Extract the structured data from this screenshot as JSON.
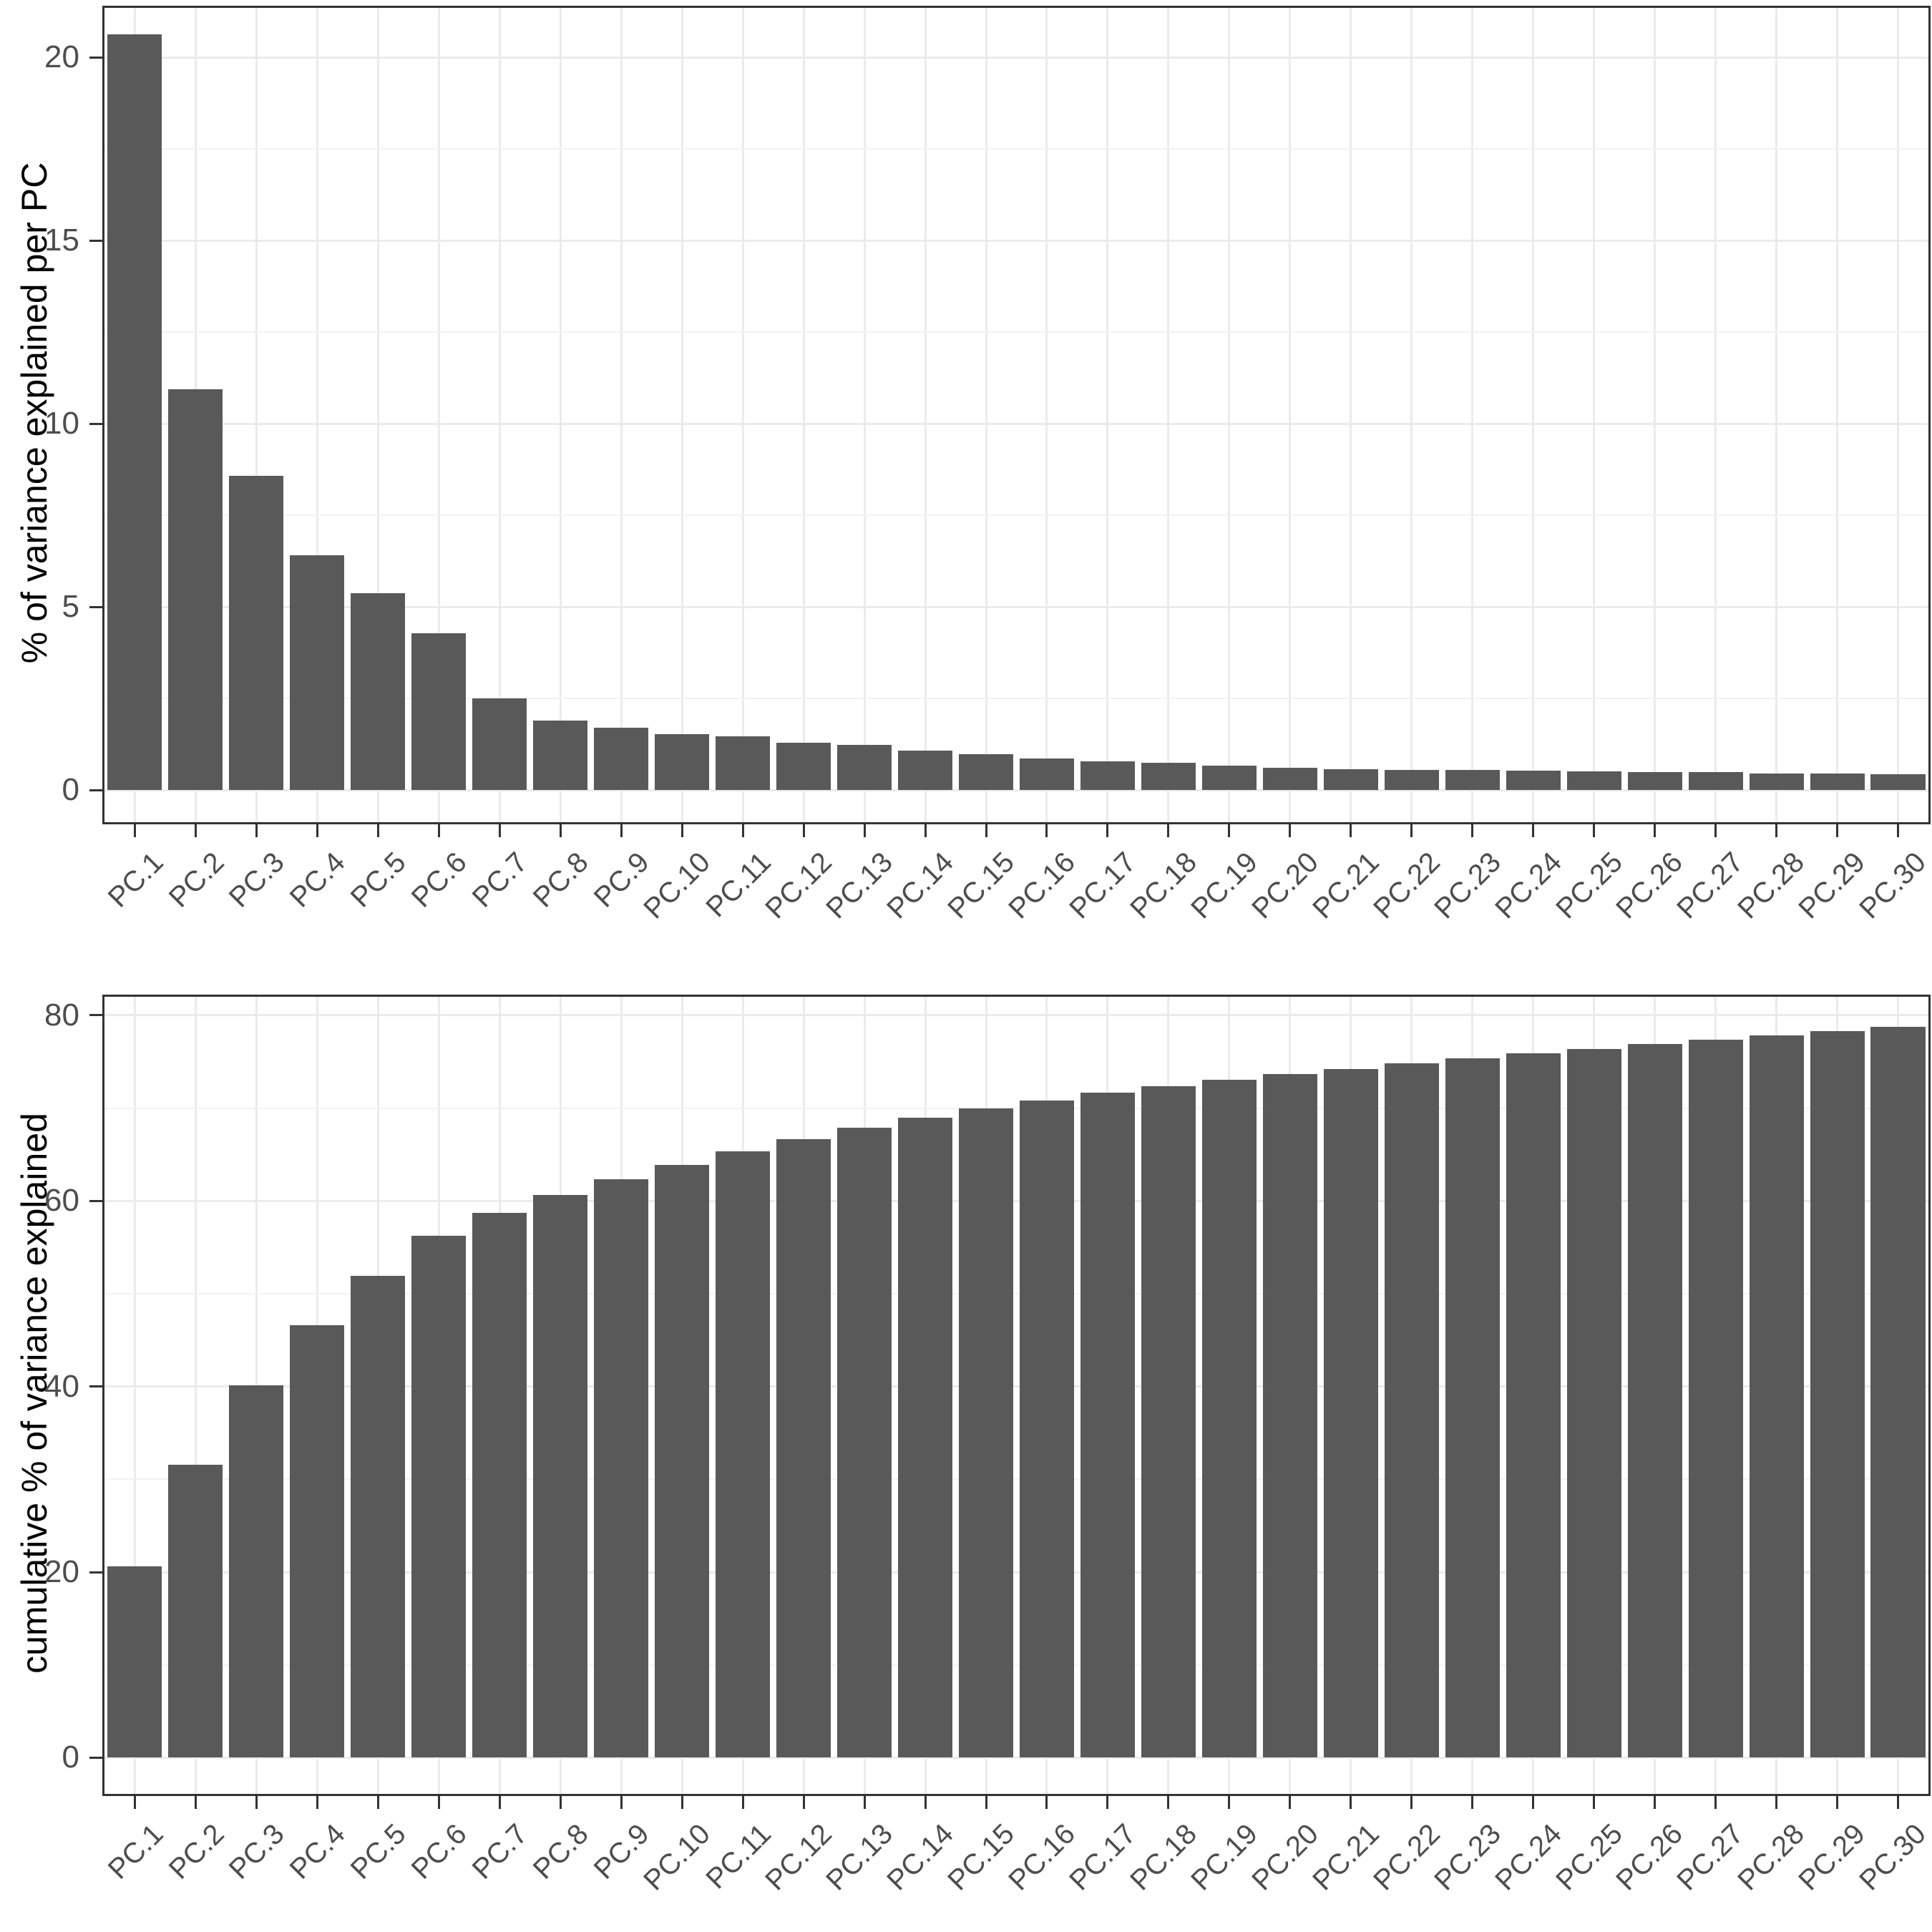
{
  "styles": {
    "background": "#FFFFFF",
    "bar_fill": "#595959",
    "panel_border": "#333333",
    "grid_major": "#EBEBEB",
    "grid_minor": "#F2F2F2",
    "tick_mark_color": "#333333",
    "tick_label_color": "#4D4D4D",
    "axis_title_color": "#000000"
  },
  "chart_data": [
    {
      "type": "bar",
      "title": "",
      "xlabel": "",
      "ylabel": "% of variance explained per PC",
      "categories": [
        "PC.1",
        "PC.2",
        "PC.3",
        "PC.4",
        "PC.5",
        "PC.6",
        "PC.7",
        "PC.8",
        "PC.9",
        "PC.10",
        "PC.11",
        "PC.12",
        "PC.13",
        "PC.14",
        "PC.15",
        "PC.16",
        "PC.17",
        "PC.18",
        "PC.19",
        "PC.20",
        "PC.21",
        "PC.22",
        "PC.23",
        "PC.24",
        "PC.25",
        "PC.26",
        "PC.27",
        "PC.28",
        "PC.29",
        "PC.30"
      ],
      "values": [
        20.63,
        10.95,
        8.58,
        6.42,
        5.37,
        4.28,
        2.51,
        1.91,
        1.7,
        1.54,
        1.47,
        1.3,
        1.24,
        1.08,
        0.99,
        0.87,
        0.79,
        0.75,
        0.68,
        0.62,
        0.57,
        0.55,
        0.55,
        0.53,
        0.52,
        0.5,
        0.49,
        0.46,
        0.45,
        0.43
      ],
      "ylim": [
        -0.87,
        21.35
      ],
      "yticks": [
        0,
        5,
        10,
        15,
        20
      ],
      "yticks_minor": [
        2.5,
        7.5,
        12.5,
        17.5
      ],
      "grid": true,
      "legend_position": "none",
      "bar_relative_width": 0.895
    },
    {
      "type": "bar",
      "title": "",
      "xlabel": "",
      "ylabel": "cumulative % of variance explained",
      "categories": [
        "PC.1",
        "PC.2",
        "PC.3",
        "PC.4",
        "PC.5",
        "PC.6",
        "PC.7",
        "PC.8",
        "PC.9",
        "PC.10",
        "PC.11",
        "PC.12",
        "PC.13",
        "PC.14",
        "PC.15",
        "PC.16",
        "PC.17",
        "PC.18",
        "PC.19",
        "PC.20",
        "PC.21",
        "PC.22",
        "PC.23",
        "PC.24",
        "PC.25",
        "PC.26",
        "PC.27",
        "PC.28",
        "PC.29",
        "PC.30"
      ],
      "values": [
        20.63,
        31.58,
        40.16,
        46.58,
        51.95,
        56.23,
        58.74,
        60.65,
        62.35,
        63.89,
        65.36,
        66.66,
        67.9,
        68.98,
        69.97,
        70.84,
        71.63,
        72.38,
        73.06,
        73.68,
        74.25,
        74.8,
        75.35,
        75.88,
        76.4,
        76.9,
        77.39,
        77.85,
        78.3,
        78.73
      ],
      "ylim": [
        -3.9,
        82.0
      ],
      "yticks": [
        0,
        20,
        40,
        60,
        80
      ],
      "yticks_minor": [
        10,
        30,
        50,
        70
      ],
      "grid": true,
      "legend_position": "none",
      "bar_relative_width": 0.895
    }
  ]
}
